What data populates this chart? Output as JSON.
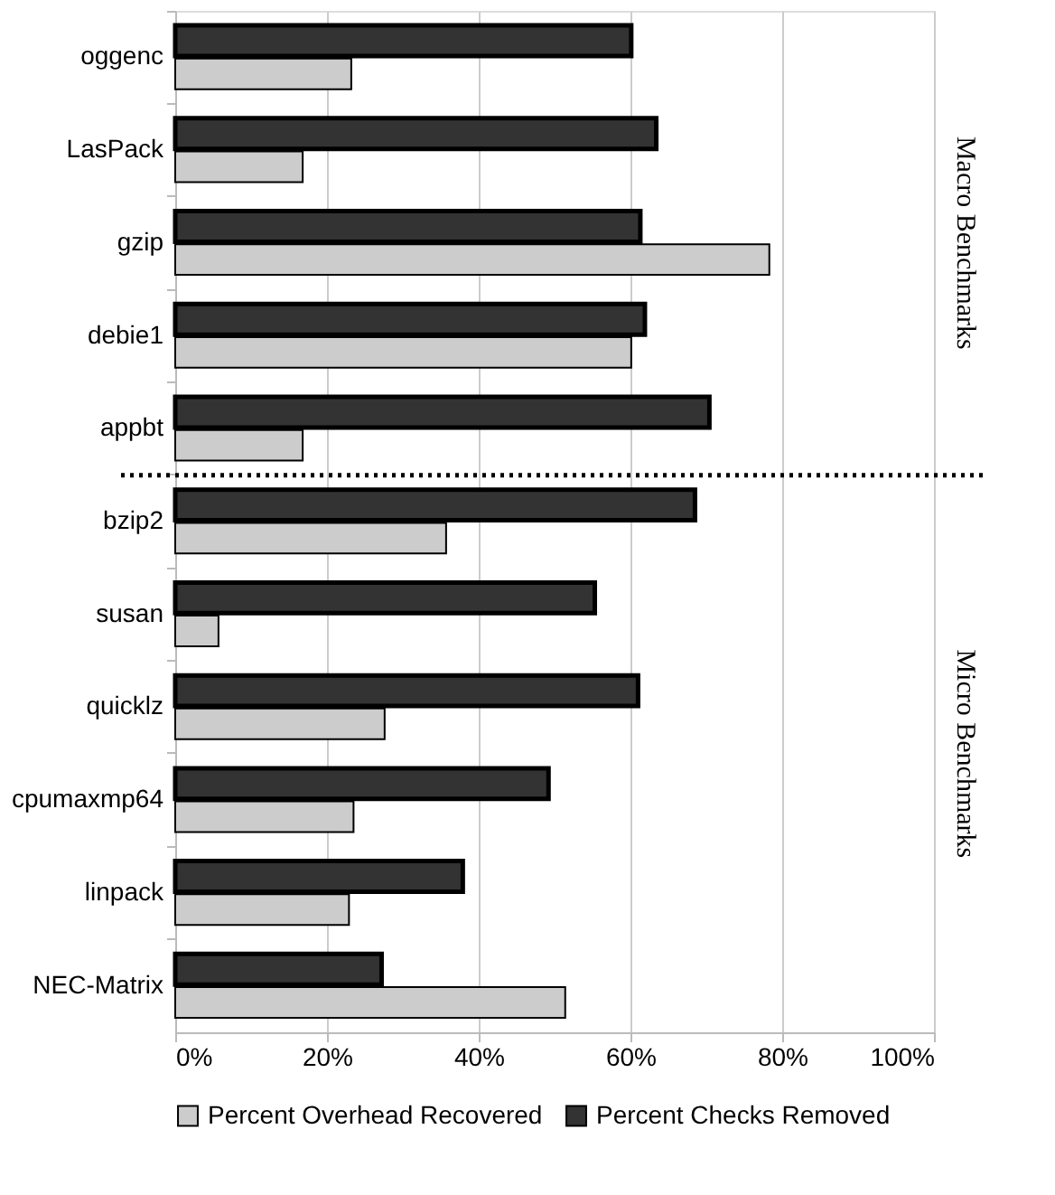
{
  "chart_data": {
    "type": "bar",
    "orientation": "horizontal",
    "categories": [
      "oggenc",
      "LasPack",
      "gzip",
      "debie1",
      "appbt",
      "bzip2",
      "susan",
      "quicklz",
      "cpumaxmp64",
      "linpack",
      "NEC-Matrix"
    ],
    "series": [
      {
        "name": "Percent Overhead Recovered",
        "color": "#cccccc",
        "values": [
          23.2,
          16.8,
          78.3,
          60.1,
          16.8,
          35.7,
          5.7,
          27.6,
          23.5,
          22.9,
          51.4
        ]
      },
      {
        "name": "Percent Checks Removed",
        "color": "#333333",
        "values": [
          60.1,
          63.4,
          61.3,
          61.9,
          70.4,
          68.5,
          55.3,
          61.0,
          49.2,
          37.9,
          27.2
        ]
      }
    ],
    "xlim": [
      0,
      100
    ],
    "xticks": [
      {
        "value": 0,
        "label": "0%"
      },
      {
        "value": 20,
        "label": "20%"
      },
      {
        "value": 40,
        "label": "40%"
      },
      {
        "value": 60,
        "label": "60%"
      },
      {
        "value": 80,
        "label": "80%"
      },
      {
        "value": 100,
        "label": "100%"
      }
    ],
    "grid": "x",
    "legend": "bottom",
    "ref_lines": [
      {
        "axis": "y",
        "value": "bzip2",
        "line_style": "dotted",
        "color": "#000000"
      }
    ],
    "annotations": [
      "Macro Benchmarks",
      "Micro Benchmarks"
    ]
  }
}
